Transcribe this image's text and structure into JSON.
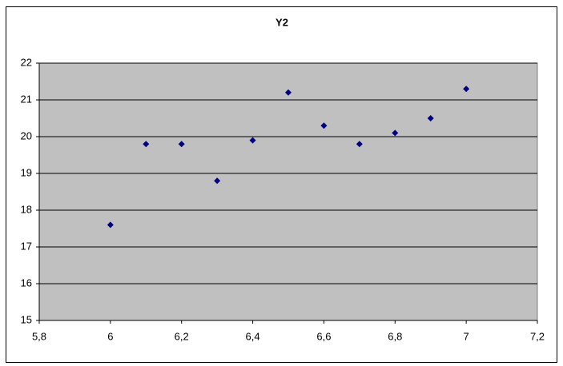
{
  "chart_data": {
    "type": "scatter",
    "title": "Y2",
    "x": [
      6.0,
      6.1,
      6.2,
      6.3,
      6.4,
      6.5,
      6.6,
      6.7,
      6.8,
      6.9,
      7.0
    ],
    "values": [
      17.6,
      19.8,
      19.8,
      18.8,
      19.9,
      21.2,
      20.3,
      19.8,
      20.1,
      20.5,
      21.3
    ],
    "color": "#000080",
    "xlim": [
      5.8,
      7.2
    ],
    "xticks": [
      {
        "value": 5.8,
        "label": "5,8"
      },
      6,
      {
        "value": 6.2,
        "label": "6,2"
      },
      {
        "value": 6.4,
        "label": "6,4"
      },
      {
        "value": 6.6,
        "label": "6,6"
      },
      {
        "value": 6.8,
        "label": "6,8"
      },
      7,
      {
        "value": 7.2,
        "label": "7,2"
      }
    ],
    "ylim": [
      15,
      22
    ],
    "yticks": [
      15,
      16,
      17,
      18,
      19,
      20,
      21,
      22
    ],
    "grid": true,
    "plot_background": "#c0c0c0"
  }
}
